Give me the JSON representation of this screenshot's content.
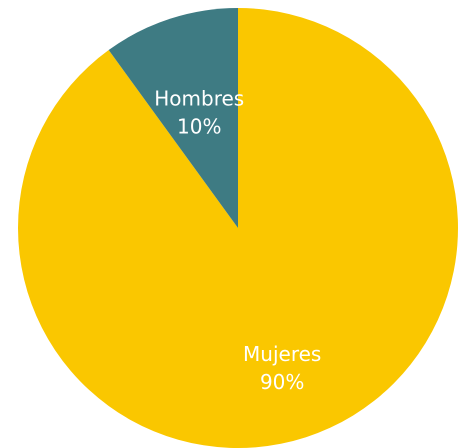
{
  "chart_data": {
    "type": "pie",
    "title": "",
    "start": "top",
    "direction": "clockwise",
    "slices": [
      {
        "label": "Mujeres",
        "value": 90,
        "display": "90%",
        "color": "#FAC700"
      },
      {
        "label": "Hombres",
        "value": 10,
        "display": "10%",
        "color": "#3E7B83"
      }
    ]
  }
}
